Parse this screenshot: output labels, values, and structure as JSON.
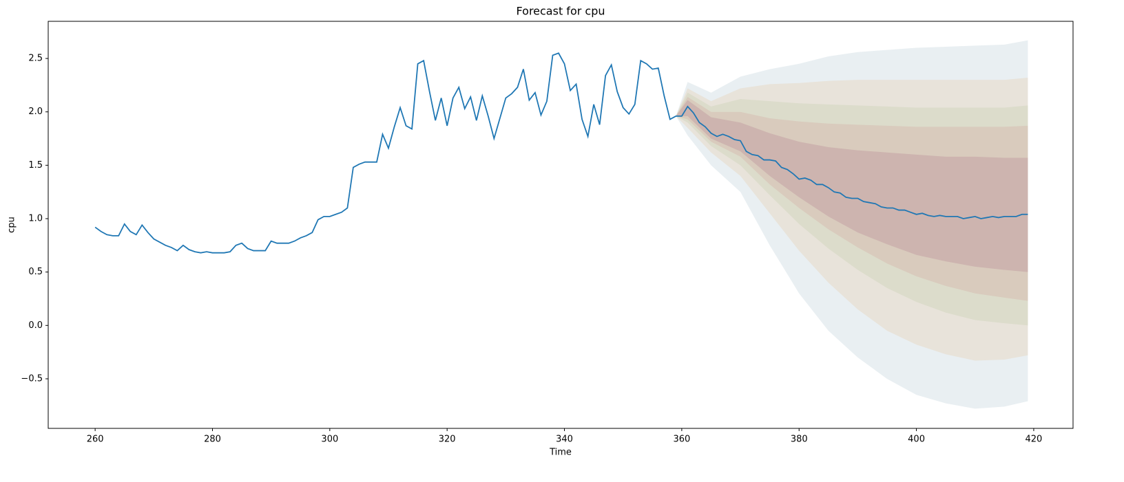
{
  "chart_data": {
    "type": "line",
    "title": "Forecast for cpu",
    "x_label": "Time",
    "y_label": "cpu",
    "color": "#1f77b4",
    "x": [
      260,
      261,
      262,
      263,
      264,
      265,
      266,
      267,
      268,
      269,
      270,
      271,
      272,
      273,
      274,
      275,
      276,
      277,
      278,
      279,
      280,
      281,
      282,
      283,
      284,
      285,
      286,
      287,
      288,
      289,
      290,
      291,
      292,
      293,
      294,
      295,
      296,
      297,
      298,
      299,
      300,
      301,
      302,
      303,
      304,
      305,
      306,
      307,
      308,
      309,
      310,
      311,
      312,
      313,
      314,
      315,
      316,
      317,
      318,
      319,
      320,
      321,
      322,
      323,
      324,
      325,
      326,
      327,
      328,
      329,
      330,
      331,
      332,
      333,
      334,
      335,
      336,
      337,
      338,
      339,
      340,
      341,
      342,
      343,
      344,
      345,
      346,
      347,
      348,
      349,
      350,
      351,
      352,
      353,
      354,
      355,
      356,
      357,
      358,
      359,
      360,
      361,
      362,
      363,
      364,
      365,
      366,
      367,
      368,
      369,
      370,
      371,
      372,
      373,
      374,
      375,
      376,
      377,
      378,
      379,
      380,
      381,
      382,
      383,
      384,
      385,
      386,
      387,
      388,
      389,
      390,
      391,
      392,
      393,
      394,
      395,
      396,
      397,
      398,
      399,
      400,
      401,
      402,
      403,
      404,
      405,
      406,
      407,
      408,
      409,
      410,
      411,
      412,
      413,
      414,
      415,
      416,
      417,
      418,
      419
    ],
    "values": [
      0.92,
      0.88,
      0.85,
      0.84,
      0.84,
      0.95,
      0.88,
      0.85,
      0.94,
      0.87,
      0.81,
      0.78,
      0.75,
      0.73,
      0.7,
      0.75,
      0.71,
      0.69,
      0.68,
      0.69,
      0.68,
      0.68,
      0.68,
      0.69,
      0.75,
      0.77,
      0.72,
      0.7,
      0.7,
      0.7,
      0.79,
      0.77,
      0.77,
      0.77,
      0.79,
      0.82,
      0.84,
      0.87,
      0.99,
      1.02,
      1.02,
      1.04,
      1.06,
      1.1,
      1.48,
      1.51,
      1.53,
      1.53,
      1.53,
      1.79,
      1.66,
      1.86,
      2.04,
      1.87,
      1.84,
      2.45,
      2.48,
      2.19,
      1.92,
      2.13,
      1.87,
      2.13,
      2.23,
      2.03,
      2.14,
      1.92,
      2.15,
      1.96,
      1.75,
      1.94,
      2.13,
      2.17,
      2.23,
      2.4,
      2.11,
      2.18,
      1.97,
      2.1,
      2.53,
      2.55,
      2.45,
      2.2,
      2.26,
      1.93,
      1.77,
      2.07,
      1.88,
      2.34,
      2.44,
      2.19,
      2.04,
      1.98,
      2.07,
      2.48,
      2.45,
      2.4,
      2.41,
      2.15,
      1.93,
      1.96,
      1.96,
      2.05,
      1.99,
      1.9,
      1.86,
      1.8,
      1.77,
      1.79,
      1.77,
      1.74,
      1.73,
      1.63,
      1.6,
      1.59,
      1.55,
      1.55,
      1.54,
      1.48,
      1.46,
      1.42,
      1.37,
      1.38,
      1.36,
      1.32,
      1.32,
      1.29,
      1.25,
      1.24,
      1.2,
      1.19,
      1.19,
      1.16,
      1.15,
      1.14,
      1.11,
      1.1,
      1.1,
      1.08,
      1.08,
      1.06,
      1.04,
      1.05,
      1.03,
      1.02,
      1.03,
      1.02,
      1.02,
      1.02,
      1.0,
      1.01,
      1.02,
      1.0,
      1.01,
      1.02,
      1.01,
      1.02,
      1.02,
      1.02,
      1.04,
      1.04
    ],
    "bands": [
      {
        "color": "#e9eff2",
        "x": [
          359,
          361,
          365,
          370,
          375,
          380,
          385,
          390,
          395,
          400,
          405,
          410,
          415,
          419
        ],
        "upper": [
          1.96,
          2.28,
          2.18,
          2.33,
          2.4,
          2.45,
          2.52,
          2.56,
          2.58,
          2.6,
          2.61,
          2.62,
          2.63,
          2.67
        ],
        "lower": [
          1.96,
          1.78,
          1.5,
          1.25,
          0.75,
          0.3,
          -0.05,
          -0.3,
          -0.5,
          -0.65,
          -0.73,
          -0.78,
          -0.76,
          -0.71
        ]
      },
      {
        "color": "#e8e3da",
        "x": [
          359,
          361,
          365,
          370,
          375,
          380,
          385,
          390,
          395,
          400,
          405,
          410,
          415,
          419
        ],
        "upper": [
          1.96,
          2.22,
          2.1,
          2.22,
          2.26,
          2.27,
          2.29,
          2.3,
          2.3,
          2.3,
          2.3,
          2.3,
          2.3,
          2.32
        ],
        "lower": [
          1.96,
          1.85,
          1.62,
          1.4,
          1.05,
          0.7,
          0.4,
          0.15,
          -0.05,
          -0.18,
          -0.27,
          -0.33,
          -0.32,
          -0.28
        ]
      },
      {
        "color": "#dcdccb",
        "x": [
          359,
          361,
          365,
          370,
          375,
          380,
          385,
          390,
          395,
          400,
          405,
          410,
          415,
          419
        ],
        "upper": [
          1.96,
          2.18,
          2.05,
          2.12,
          2.1,
          2.08,
          2.07,
          2.06,
          2.05,
          2.04,
          2.04,
          2.04,
          2.04,
          2.06
        ],
        "lower": [
          1.96,
          1.9,
          1.68,
          1.5,
          1.22,
          0.95,
          0.72,
          0.52,
          0.35,
          0.22,
          0.12,
          0.05,
          0.02,
          0.0
        ]
      },
      {
        "color": "#d9cbbd",
        "x": [
          359,
          361,
          365,
          370,
          375,
          380,
          385,
          390,
          395,
          400,
          405,
          410,
          415,
          419
        ],
        "upper": [
          1.96,
          2.14,
          2.0,
          2.0,
          1.94,
          1.91,
          1.89,
          1.88,
          1.87,
          1.86,
          1.86,
          1.86,
          1.86,
          1.87
        ],
        "lower": [
          1.96,
          1.93,
          1.72,
          1.58,
          1.32,
          1.1,
          0.9,
          0.73,
          0.58,
          0.46,
          0.37,
          0.3,
          0.26,
          0.23
        ]
      },
      {
        "color": "#cdb4af",
        "x": [
          359,
          361,
          365,
          370,
          375,
          380,
          385,
          390,
          395,
          400,
          405,
          410,
          415,
          419
        ],
        "upper": [
          1.96,
          2.11,
          1.95,
          1.9,
          1.8,
          1.72,
          1.67,
          1.64,
          1.62,
          1.6,
          1.58,
          1.58,
          1.57,
          1.57
        ],
        "lower": [
          1.96,
          1.96,
          1.75,
          1.63,
          1.4,
          1.2,
          1.02,
          0.87,
          0.76,
          0.66,
          0.6,
          0.55,
          0.52,
          0.5
        ]
      }
    ],
    "xlim": [
      252,
      426.7
    ],
    "ylim": [
      -0.964,
      2.848
    ],
    "xticks": [
      260,
      280,
      300,
      320,
      340,
      360,
      380,
      400,
      420
    ],
    "yticks": [
      {
        "value": -0.5,
        "label": "−0.5"
      },
      {
        "value": 0,
        "label": "0.0"
      },
      {
        "value": 0.5,
        "label": "0.5"
      },
      {
        "value": 1,
        "label": "1.0"
      },
      {
        "value": 1.5,
        "label": "1.5"
      },
      {
        "value": 2,
        "label": "2.0"
      },
      {
        "value": 2.5,
        "label": "2.5"
      }
    ]
  }
}
